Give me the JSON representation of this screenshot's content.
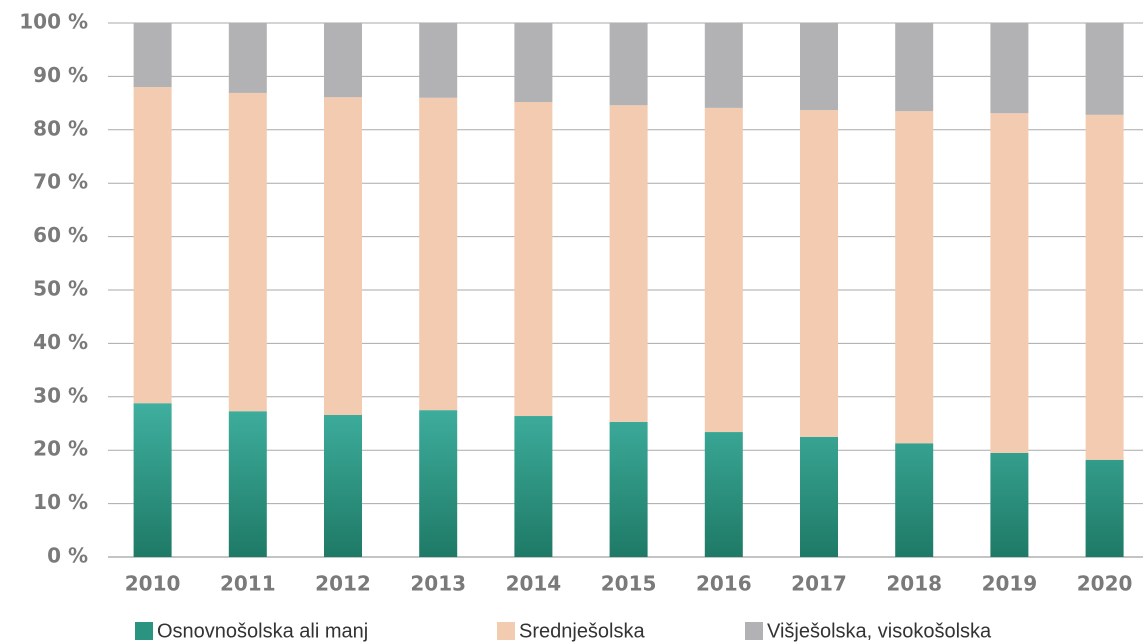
{
  "chart_data": {
    "type": "stacked_bar",
    "categories": [
      "2010",
      "2011",
      "2012",
      "2013",
      "2014",
      "2015",
      "2016",
      "2017",
      "2018",
      "2019",
      "2020"
    ],
    "series": [
      {
        "name": "Osnovnošolska ali manj",
        "color": "#2a9480",
        "values": [
          28.8,
          27.3,
          26.6,
          27.5,
          26.4,
          25.3,
          23.4,
          22.5,
          21.3,
          19.5,
          18.2
        ]
      },
      {
        "name": "Srednješolska",
        "color": "#f2cbb0",
        "values": [
          59.2,
          59.6,
          59.5,
          58.5,
          58.8,
          59.3,
          60.7,
          61.2,
          62.2,
          63.6,
          64.6
        ]
      },
      {
        "name": "Višješolska, visokošolska",
        "color": "#b2b2b4",
        "values": [
          12.0,
          13.1,
          13.9,
          14.0,
          14.8,
          15.4,
          15.9,
          16.3,
          16.5,
          16.9,
          17.2
        ]
      }
    ],
    "ylim": [
      0,
      100
    ],
    "yticks": [
      {
        "value": 0,
        "label": "0 %"
      },
      {
        "value": 10,
        "label": "10 %"
      },
      {
        "value": 20,
        "label": "20 %"
      },
      {
        "value": 30,
        "label": "30 %"
      },
      {
        "value": 40,
        "label": "40 %"
      },
      {
        "value": 50,
        "label": "50 %"
      },
      {
        "value": 60,
        "label": "60 %"
      },
      {
        "value": 70,
        "label": "70 %"
      },
      {
        "value": 80,
        "label": "80 %"
      },
      {
        "value": 90,
        "label": "90 %"
      },
      {
        "value": 100,
        "label": "100 %"
      }
    ],
    "grid": true,
    "legend": "bottom"
  }
}
